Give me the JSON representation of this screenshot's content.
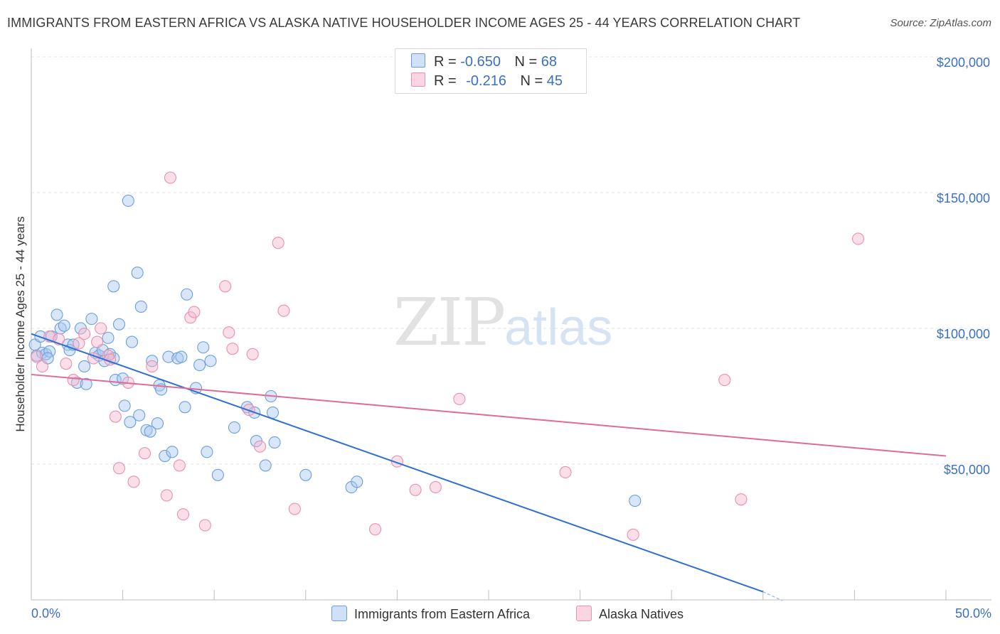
{
  "title": "IMMIGRANTS FROM EASTERN AFRICA VS ALASKA NATIVE HOUSEHOLDER INCOME AGES 25 - 44 YEARS CORRELATION CHART",
  "source": "Source: ZipAtlas.com",
  "watermark": {
    "zip": "ZIP",
    "atlas": "atlas"
  },
  "legend": {
    "rows": [
      {
        "r_label": "R =",
        "r_value": "-0.650",
        "n_label": "N =",
        "n_value": "68",
        "color": "#a9c8ee"
      },
      {
        "r_label": "R =",
        "r_value": "-0.216",
        "n_label": "N =",
        "n_value": "45",
        "color": "#f6b7cb"
      }
    ]
  },
  "bottom_legend": [
    {
      "label": "Immigrants from Eastern Africa",
      "color": "#a9c8ee"
    },
    {
      "label": "Alaska Natives",
      "color": "#f6b7cb"
    }
  ],
  "chart_data": {
    "type": "scatter",
    "title": "IMMIGRANTS FROM EASTERN AFRICA VS ALASKA NATIVE HOUSEHOLDER INCOME AGES 25 - 44 YEARS CORRELATION CHART",
    "xlabel": "",
    "ylabel": "Householder Income Ages 25 - 44 years",
    "xlim": [
      0,
      50
    ],
    "ylim": [
      0,
      200000
    ],
    "x_tick_labels": [
      "0.0%",
      "50.0%"
    ],
    "y_ticks": [
      50000,
      100000,
      150000,
      200000
    ],
    "y_tick_labels": [
      "$50,000",
      "$100,000",
      "$150,000",
      "$200,000"
    ],
    "grid": true,
    "series": [
      {
        "name": "Immigrants from Eastern Africa",
        "color": "#6a9ee0",
        "fill": "#a9c8ee",
        "trend": {
          "x": [
            0,
            40
          ],
          "y": [
            98000,
            3000
          ]
        },
        "points": [
          [
            0.2,
            94000
          ],
          [
            0.3,
            90000
          ],
          [
            0.5,
            97000
          ],
          [
            0.6,
            91000
          ],
          [
            0.8,
            90500
          ],
          [
            1.0,
            91500
          ],
          [
            1.1,
            97000
          ],
          [
            1.4,
            105000
          ],
          [
            1.6,
            100000
          ],
          [
            1.8,
            101000
          ],
          [
            2.0,
            94000
          ],
          [
            2.1,
            92000
          ],
          [
            2.3,
            94000
          ],
          [
            2.5,
            80000
          ],
          [
            2.7,
            100000
          ],
          [
            2.9,
            86000
          ],
          [
            3.0,
            79500
          ],
          [
            3.3,
            103500
          ],
          [
            3.5,
            91000
          ],
          [
            3.7,
            90000
          ],
          [
            3.9,
            92000
          ],
          [
            4.0,
            88000
          ],
          [
            4.2,
            96500
          ],
          [
            4.3,
            90500
          ],
          [
            4.5,
            89000
          ],
          [
            4.5,
            115500
          ],
          [
            4.6,
            81000
          ],
          [
            4.8,
            101500
          ],
          [
            5.0,
            81500
          ],
          [
            5.1,
            71500
          ],
          [
            5.3,
            147000
          ],
          [
            5.4,
            65500
          ],
          [
            5.5,
            95000
          ],
          [
            5.8,
            120500
          ],
          [
            5.9,
            68000
          ],
          [
            6.0,
            108000
          ],
          [
            6.3,
            62500
          ],
          [
            6.5,
            62000
          ],
          [
            6.6,
            88000
          ],
          [
            6.9,
            65000
          ],
          [
            7.0,
            79000
          ],
          [
            7.1,
            77500
          ],
          [
            7.3,
            53000
          ],
          [
            7.5,
            89500
          ],
          [
            7.7,
            54500
          ],
          [
            8.0,
            89000
          ],
          [
            8.2,
            89500
          ],
          [
            8.4,
            71000
          ],
          [
            8.5,
            112500
          ],
          [
            9.0,
            78000
          ],
          [
            9.2,
            86500
          ],
          [
            9.4,
            93000
          ],
          [
            9.6,
            54500
          ],
          [
            9.8,
            88000
          ],
          [
            10.2,
            46000
          ],
          [
            11.1,
            63500
          ],
          [
            11.8,
            71000
          ],
          [
            12.2,
            69000
          ],
          [
            12.3,
            58500
          ],
          [
            12.8,
            49500
          ],
          [
            13.1,
            75000
          ],
          [
            13.2,
            69000
          ],
          [
            13.3,
            58000
          ],
          [
            15.0,
            46000
          ],
          [
            17.5,
            41500
          ],
          [
            17.8,
            43500
          ],
          [
            33.0,
            36500
          ],
          [
            0.9,
            89000
          ]
        ]
      },
      {
        "name": "Alaska Natives",
        "color": "#ea8fb0",
        "fill": "#f6b7cb",
        "trend": {
          "x": [
            0,
            50
          ],
          "y": [
            83000,
            53000
          ]
        },
        "points": [
          [
            0.3,
            89500
          ],
          [
            0.6,
            86000
          ],
          [
            1.0,
            97000
          ],
          [
            1.5,
            96000
          ],
          [
            1.9,
            87000
          ],
          [
            2.3,
            81000
          ],
          [
            2.6,
            94500
          ],
          [
            2.9,
            98000
          ],
          [
            3.4,
            89000
          ],
          [
            3.6,
            95000
          ],
          [
            3.8,
            100000
          ],
          [
            4.2,
            90000
          ],
          [
            4.3,
            88500
          ],
          [
            4.6,
            67500
          ],
          [
            4.8,
            48500
          ],
          [
            5.3,
            80000
          ],
          [
            5.6,
            43500
          ],
          [
            6.2,
            54000
          ],
          [
            6.6,
            86000
          ],
          [
            7.4,
            38500
          ],
          [
            7.6,
            155500
          ],
          [
            8.1,
            49500
          ],
          [
            8.3,
            31500
          ],
          [
            8.7,
            104000
          ],
          [
            8.9,
            106000
          ],
          [
            9.5,
            27500
          ],
          [
            10.6,
            115500
          ],
          [
            10.8,
            98500
          ],
          [
            11.0,
            92500
          ],
          [
            11.9,
            70000
          ],
          [
            12.1,
            90500
          ],
          [
            12.5,
            56500
          ],
          [
            13.5,
            131500
          ],
          [
            13.8,
            106500
          ],
          [
            14.4,
            33500
          ],
          [
            18.8,
            26000
          ],
          [
            20.0,
            51000
          ],
          [
            21.0,
            40500
          ],
          [
            22.1,
            41500
          ],
          [
            23.4,
            74000
          ],
          [
            29.2,
            47000
          ],
          [
            32.9,
            24000
          ],
          [
            37.9,
            81000
          ],
          [
            38.8,
            37000
          ],
          [
            45.2,
            133000
          ]
        ]
      }
    ]
  }
}
